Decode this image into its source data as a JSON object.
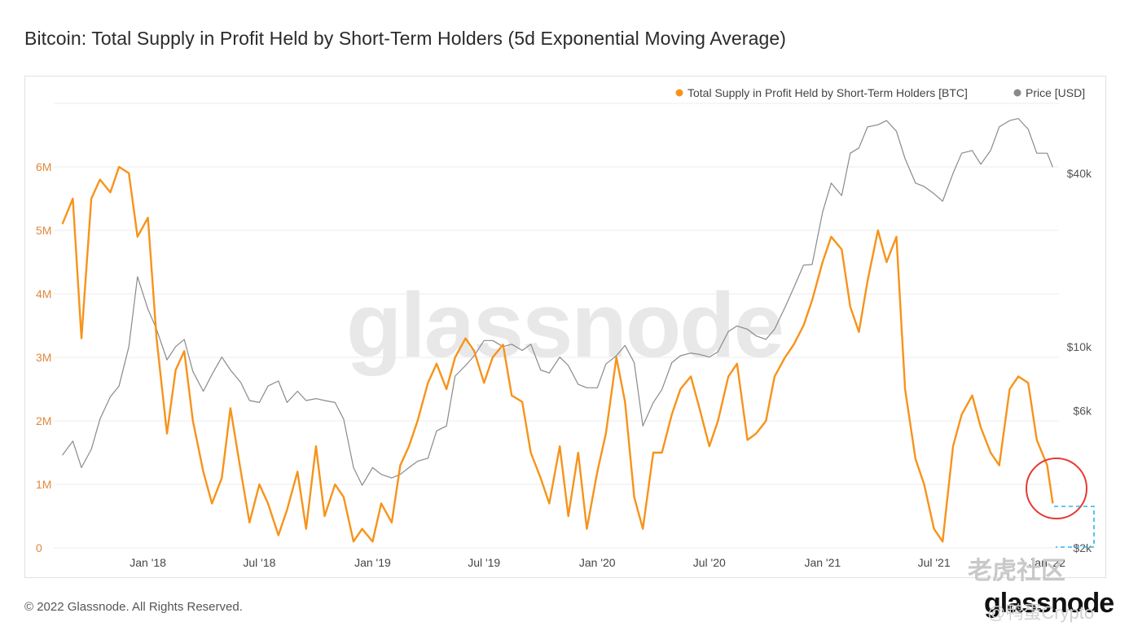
{
  "page": {
    "title": "Bitcoin: Total Supply in Profit Held by Short-Term Holders (5d Exponential Moving Average)",
    "footer": "© 2022 Glassnode. All Rights Reserved.",
    "brand": "glassnode",
    "watermark": "glassnode",
    "tiger_watermark": "老虎社区",
    "user_handle": "@鸭蛋Crypto"
  },
  "colors": {
    "supply": "#f7931a",
    "price": "#8a8a8a",
    "grid": "#eeeeee",
    "axis_left": "#e0883a",
    "axis_right": "#555555",
    "circle": "#e53935",
    "dashed": "#29b6f6"
  },
  "chart_data": {
    "type": "line",
    "title": "Bitcoin: Total Supply in Profit Held by Short-Term Holders (5d Exponential Moving Average)",
    "legend": {
      "placement": "top-right"
    },
    "grid": true,
    "x_ticks": [
      "Jan '18",
      "Jul '18",
      "Jan '19",
      "Jul '19",
      "Jan '20",
      "Jul '20",
      "Jan '21",
      "Jul '21",
      "Jan '22"
    ],
    "y_left": {
      "ticks": [
        "0",
        "1M",
        "2M",
        "3M",
        "4M",
        "5M",
        "6M"
      ],
      "range": [
        0,
        7000000
      ]
    },
    "y_right": {
      "ticks": [
        "$2k",
        "$6k",
        "$10k",
        "$40k"
      ],
      "scale": "log",
      "range": [
        2000,
        70000
      ]
    },
    "series": [
      {
        "name": "Total Supply in Profit Held by Short-Term Holders [BTC]",
        "axis": "left",
        "x": [
          "2017-08-15",
          "2017-09-01",
          "2017-09-15",
          "2017-10-01",
          "2017-10-15",
          "2017-11-01",
          "2017-11-15",
          "2017-12-01",
          "2017-12-15",
          "2018-01-01",
          "2018-01-15",
          "2018-02-01",
          "2018-02-15",
          "2018-03-01",
          "2018-03-15",
          "2018-04-01",
          "2018-04-15",
          "2018-05-01",
          "2018-05-15",
          "2018-06-01",
          "2018-06-15",
          "2018-07-01",
          "2018-07-15",
          "2018-08-01",
          "2018-08-15",
          "2018-09-01",
          "2018-09-15",
          "2018-10-01",
          "2018-10-15",
          "2018-11-01",
          "2018-11-15",
          "2018-12-01",
          "2018-12-15",
          "2019-01-01",
          "2019-01-15",
          "2019-02-01",
          "2019-02-15",
          "2019-03-01",
          "2019-03-15",
          "2019-04-01",
          "2019-04-15",
          "2019-05-01",
          "2019-05-15",
          "2019-06-01",
          "2019-06-15",
          "2019-07-01",
          "2019-07-15",
          "2019-08-01",
          "2019-08-15",
          "2019-09-01",
          "2019-09-15",
          "2019-10-01",
          "2019-10-15",
          "2019-11-01",
          "2019-11-15",
          "2019-12-01",
          "2019-12-15",
          "2020-01-01",
          "2020-01-15",
          "2020-02-01",
          "2020-02-15",
          "2020-03-01",
          "2020-03-15",
          "2020-04-01",
          "2020-04-15",
          "2020-05-01",
          "2020-05-15",
          "2020-06-01",
          "2020-06-15",
          "2020-07-01",
          "2020-07-15",
          "2020-08-01",
          "2020-08-15",
          "2020-09-01",
          "2020-09-15",
          "2020-10-01",
          "2020-10-15",
          "2020-11-01",
          "2020-11-15",
          "2020-12-01",
          "2020-12-15",
          "2021-01-01",
          "2021-01-15",
          "2021-02-01",
          "2021-02-15",
          "2021-03-01",
          "2021-03-15",
          "2021-04-01",
          "2021-04-15",
          "2021-05-01",
          "2021-05-15",
          "2021-06-01",
          "2021-06-15",
          "2021-07-01",
          "2021-07-15",
          "2021-08-01",
          "2021-08-15",
          "2021-09-01",
          "2021-09-15",
          "2021-10-01",
          "2021-10-15",
          "2021-11-01",
          "2021-11-15",
          "2021-12-01",
          "2021-12-15",
          "2022-01-01",
          "2022-01-10"
        ],
        "values": [
          5100000,
          5500000,
          3300000,
          5500000,
          5800000,
          5600000,
          6000000,
          5900000,
          4900000,
          5200000,
          3300000,
          1800000,
          2800000,
          3100000,
          2000000,
          1200000,
          700000,
          1100000,
          2200000,
          1200000,
          400000,
          1000000,
          700000,
          200000,
          600000,
          1200000,
          300000,
          1600000,
          500000,
          1000000,
          800000,
          100000,
          300000,
          100000,
          700000,
          400000,
          1300000,
          1600000,
          2000000,
          2600000,
          2900000,
          2500000,
          3000000,
          3300000,
          3100000,
          2600000,
          3000000,
          3200000,
          2400000,
          2300000,
          1500000,
          1100000,
          700000,
          1600000,
          500000,
          1500000,
          300000,
          1200000,
          1800000,
          3000000,
          2300000,
          800000,
          300000,
          1500000,
          1500000,
          2100000,
          2500000,
          2700000,
          2200000,
          1600000,
          2000000,
          2700000,
          2900000,
          1700000,
          1800000,
          2000000,
          2700000,
          3000000,
          3200000,
          3500000,
          3900000,
          4500000,
          4900000,
          4700000,
          3800000,
          3400000,
          4200000,
          5000000,
          4500000,
          4900000,
          2500000,
          1400000,
          1000000,
          300000,
          100000,
          1600000,
          2100000,
          2400000,
          1900000,
          1500000,
          1300000,
          2500000,
          2700000,
          2600000,
          1700000,
          1300000,
          700000
        ]
      },
      {
        "name": "Price [USD]",
        "axis": "right",
        "x": [
          "2017-08-15",
          "2017-09-01",
          "2017-09-15",
          "2017-10-01",
          "2017-10-15",
          "2017-11-01",
          "2017-11-15",
          "2017-12-01",
          "2017-12-15",
          "2018-01-01",
          "2018-01-15",
          "2018-02-01",
          "2018-02-15",
          "2018-03-01",
          "2018-03-15",
          "2018-04-01",
          "2018-04-15",
          "2018-05-01",
          "2018-05-15",
          "2018-06-01",
          "2018-06-15",
          "2018-07-01",
          "2018-07-15",
          "2018-08-01",
          "2018-08-15",
          "2018-09-01",
          "2018-09-15",
          "2018-10-01",
          "2018-10-15",
          "2018-11-01",
          "2018-11-15",
          "2018-12-01",
          "2018-12-15",
          "2019-01-01",
          "2019-01-15",
          "2019-02-01",
          "2019-02-15",
          "2019-03-01",
          "2019-03-15",
          "2019-04-01",
          "2019-04-15",
          "2019-05-01",
          "2019-05-15",
          "2019-06-01",
          "2019-06-15",
          "2019-07-01",
          "2019-07-15",
          "2019-08-01",
          "2019-08-15",
          "2019-09-01",
          "2019-09-15",
          "2019-10-01",
          "2019-10-15",
          "2019-11-01",
          "2019-11-15",
          "2019-12-01",
          "2019-12-15",
          "2020-01-01",
          "2020-01-15",
          "2020-02-01",
          "2020-02-15",
          "2020-03-01",
          "2020-03-15",
          "2020-04-01",
          "2020-04-15",
          "2020-05-01",
          "2020-05-15",
          "2020-06-01",
          "2020-06-15",
          "2020-07-01",
          "2020-07-15",
          "2020-08-01",
          "2020-08-15",
          "2020-09-01",
          "2020-09-15",
          "2020-10-01",
          "2020-10-15",
          "2020-11-01",
          "2020-11-15",
          "2020-12-01",
          "2020-12-15",
          "2021-01-01",
          "2021-01-15",
          "2021-02-01",
          "2021-02-15",
          "2021-03-01",
          "2021-03-15",
          "2021-04-01",
          "2021-04-15",
          "2021-05-01",
          "2021-05-15",
          "2021-06-01",
          "2021-06-15",
          "2021-07-01",
          "2021-07-15",
          "2021-08-01",
          "2021-08-15",
          "2021-09-01",
          "2021-09-15",
          "2021-10-01",
          "2021-10-15",
          "2021-11-01",
          "2021-11-15",
          "2021-12-01",
          "2021-12-15",
          "2022-01-01",
          "2022-01-10"
        ],
        "values": [
          4200,
          4700,
          3800,
          4400,
          5600,
          6700,
          7300,
          10000,
          17500,
          13500,
          11500,
          9000,
          10000,
          10600,
          8200,
          7000,
          8000,
          9200,
          8300,
          7500,
          6500,
          6400,
          7300,
          7600,
          6400,
          7000,
          6500,
          6600,
          6500,
          6400,
          5600,
          3800,
          3300,
          3800,
          3600,
          3500,
          3600,
          3800,
          4000,
          4100,
          5100,
          5300,
          7900,
          8600,
          9300,
          10500,
          10500,
          10000,
          10200,
          9700,
          10200,
          8300,
          8100,
          9200,
          8600,
          7400,
          7200,
          7200,
          8700,
          9300,
          10100,
          8800,
          5300,
          6400,
          7100,
          8800,
          9300,
          9500,
          9400,
          9200,
          9600,
          11300,
          11800,
          11500,
          10900,
          10600,
          11500,
          13700,
          16000,
          19200,
          19300,
          29300,
          37000,
          33500,
          47000,
          49000,
          58000,
          59000,
          61000,
          56000,
          45000,
          37000,
          36000,
          34000,
          32000,
          40000,
          47000,
          48000,
          43000,
          48000,
          58000,
          61000,
          62000,
          57000,
          47000,
          47000,
          42000
        ]
      }
    ]
  }
}
